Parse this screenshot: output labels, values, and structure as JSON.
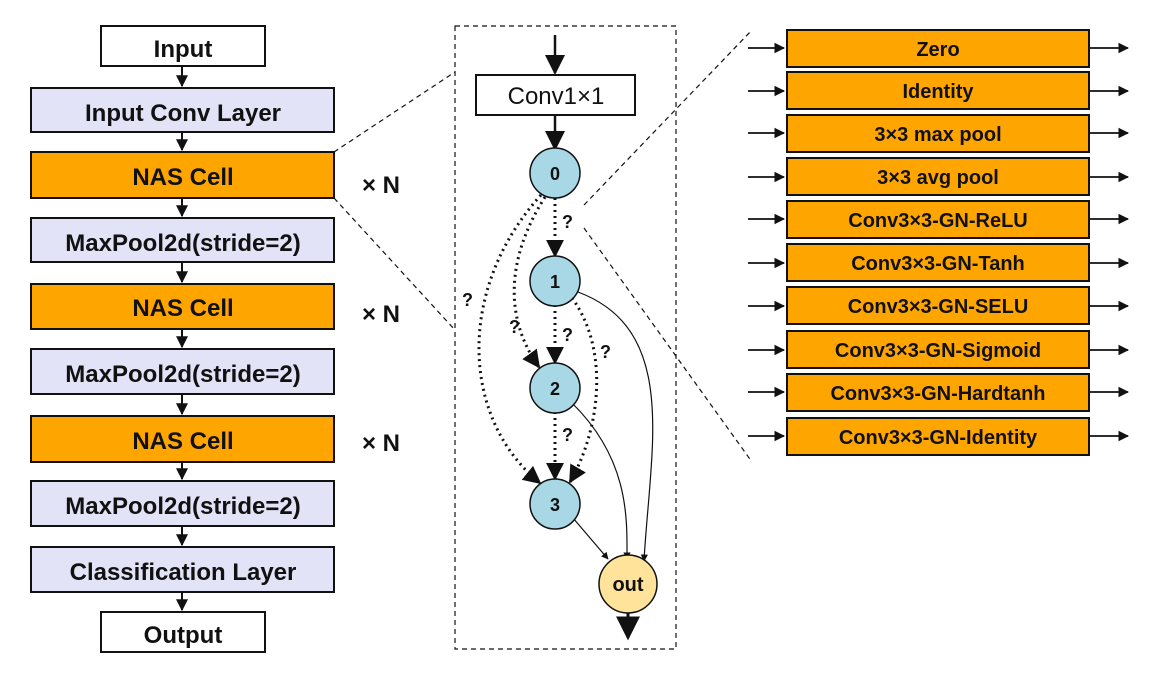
{
  "pipeline": {
    "input": "Input",
    "input_conv": "Input Conv Layer",
    "nas_cell": "NAS Cell",
    "maxpool": "MaxPool2d(stride=2)",
    "classification": "Classification Layer",
    "output": "Output",
    "repeat": "× N"
  },
  "cell": {
    "conv": "Conv1×1",
    "nodes": [
      "0",
      "1",
      "2",
      "3"
    ],
    "out": "out",
    "search_mark": "?"
  },
  "operations": [
    "Zero",
    "Identity",
    "3×3 max pool",
    "3×3 avg pool",
    "Conv3×3-GN-ReLU",
    "Conv3×3-GN-Tanh",
    "Conv3×3-GN-SELU",
    "Conv3×3-GN-Sigmoid",
    "Conv3×3-GN-Hardtanh",
    "Conv3×3-GN-Identity"
  ],
  "colors": {
    "nas_cell": "#FFA500",
    "layer": "#E2E3F6",
    "node": "#A8D8E5",
    "out_node": "#FFE39A"
  }
}
